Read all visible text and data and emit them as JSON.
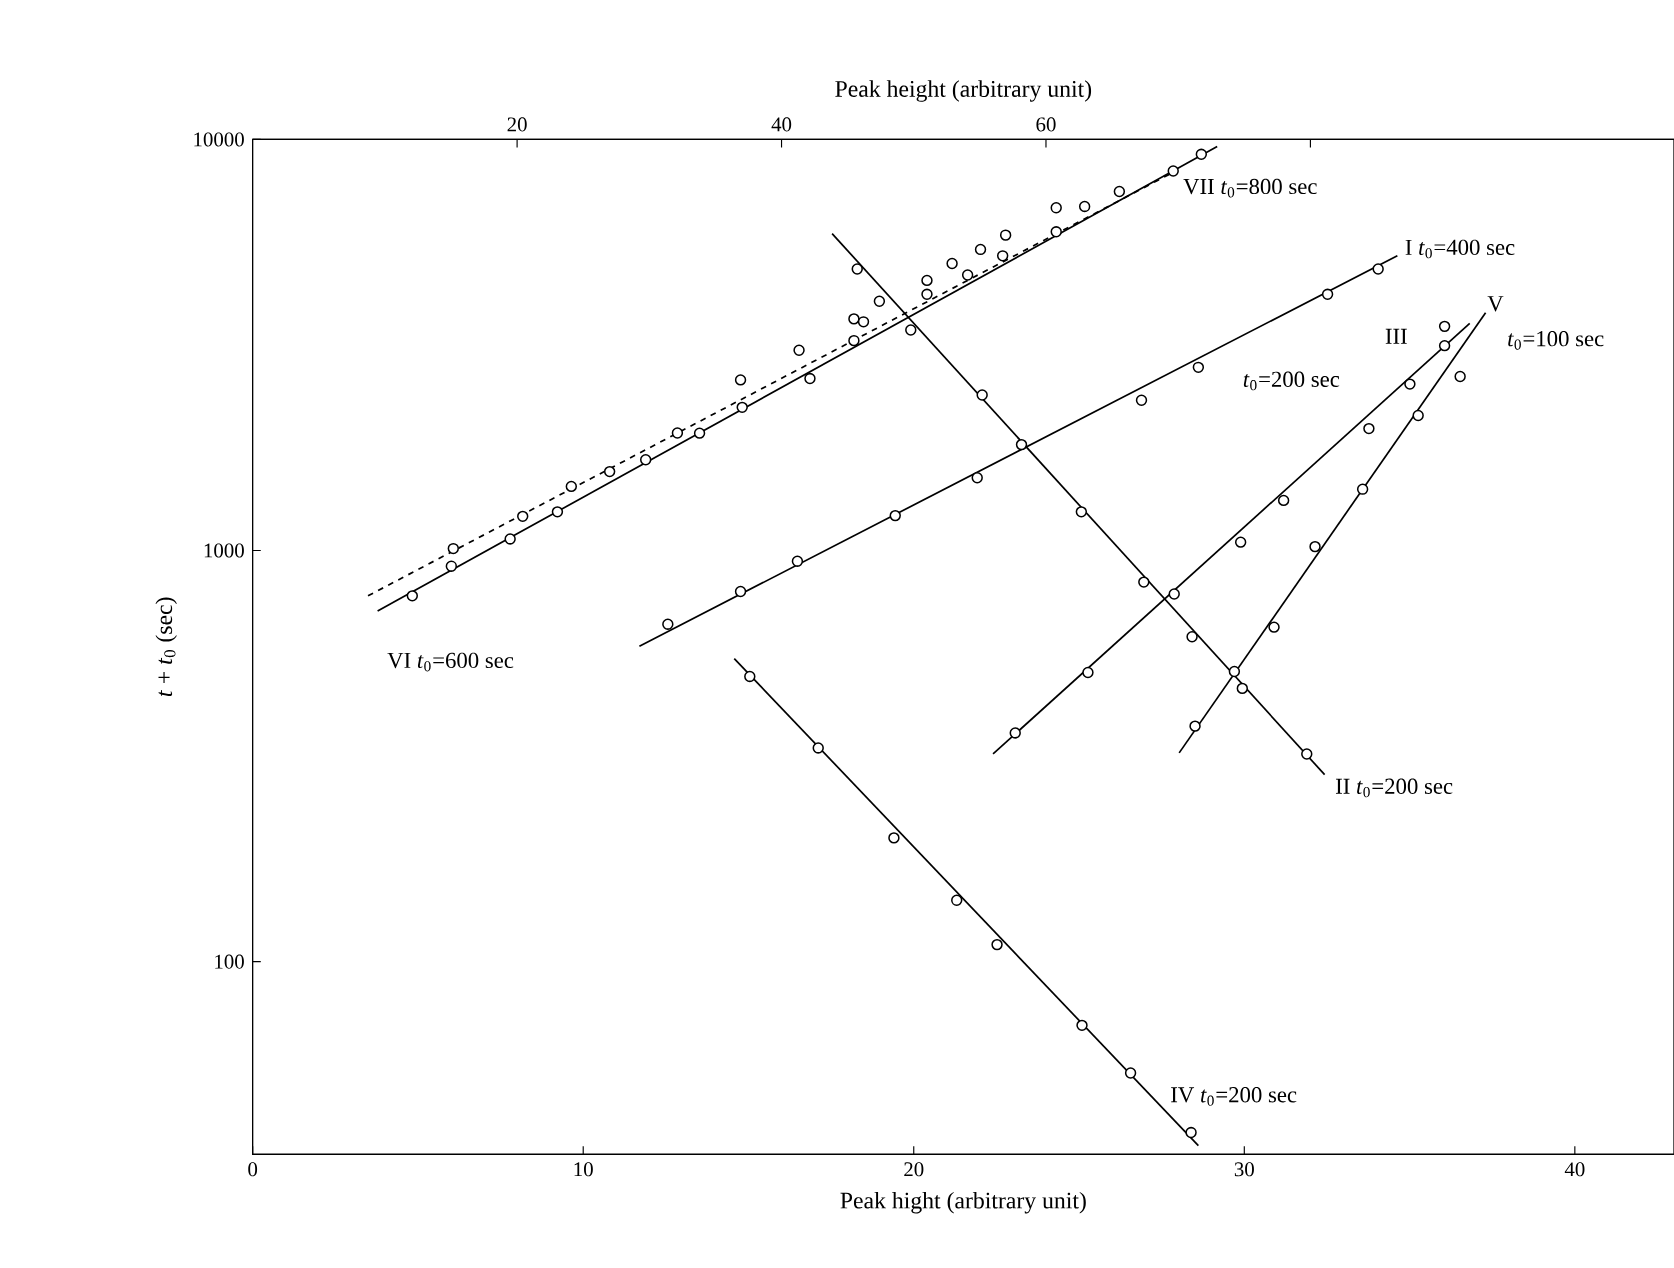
{
  "chart_data": {
    "type": "scatter",
    "xlabel": "Peak hight (arbitrary unit)",
    "x2label": "Peak height (arbitrary unit)",
    "ylabel": "*t* + *t*$_{0}$ (sec)",
    "xlim": [
      0,
      43
    ],
    "xticks": [
      0,
      10,
      20,
      30,
      40
    ],
    "x2lim": [
      0,
      107.5
    ],
    "x2ticks": [
      20,
      40,
      60,
      {
        "value": 80,
        "label": null
      }
    ],
    "ylim": [
      34,
      10000
    ],
    "yticks": [
      100,
      1000,
      10000
    ],
    "log": "y",
    "series": [
      {
        "marker": "circle",
        "color": "#000000",
        "x": [
          4.83,
          6.01,
          7.79,
          9.22,
          10.8,
          12.85,
          14.76,
          16.53,
          18.19,
          18.96,
          20.4,
          21.16,
          22.02,
          22.78,
          24.31,
          25.17,
          26.22,
          28.7
        ],
        "values": [
          776,
          916,
          1067,
          1242,
          1556,
          1932,
          2600,
          3070,
          3660,
          4040,
          4540,
          4990,
          5400,
          5850,
          6820,
          6870,
          7470,
          9200
        ]
      },
      {
        "type": "line",
        "marker": "none",
        "line_style": "solid",
        "color": "#000000",
        "x": [
          3.78,
          29.18
        ],
        "values": [
          713,
          9610
        ]
      },
      {
        "marker": "circle",
        "color": "#000000",
        "x": [
          6.07,
          8.17,
          9.64,
          11.89,
          13.52,
          14.81,
          16.86,
          18.19,
          18.48,
          20.4,
          21.63,
          22.69,
          24.31,
          27.85
        ],
        "values": [
          1011,
          1211,
          1432,
          1663,
          1930,
          2230,
          2620,
          3240,
          3600,
          4200,
          4680,
          5210,
          5960,
          8380
        ]
      },
      {
        "type": "line",
        "marker": "none",
        "line_style": "dashed",
        "color": "#000000",
        "x": [
          3.49,
          27.85
        ],
        "values": [
          776,
          8320
        ]
      },
      {
        "marker": "circle",
        "color": "#000000",
        "x": [
          12.56,
          14.76,
          16.48,
          19.44,
          21.92,
          26.89,
          28.61,
          32.52,
          34.05
        ],
        "values": [
          662,
          795,
          942,
          1216,
          1503,
          2320,
          2790,
          4200,
          4840
        ]
      },
      {
        "type": "line",
        "marker": "none",
        "line_style": "solid",
        "color": "#000000",
        "x": [
          11.7,
          34.63
        ],
        "values": [
          585,
          5210
        ]
      },
      {
        "marker": "circle",
        "color": "#000000",
        "x": [
          18.29,
          19.91,
          22.07,
          23.26,
          25.07,
          26.96,
          28.42,
          29.94,
          31.89
        ],
        "values": [
          4840,
          3440,
          2390,
          1810,
          1242,
          838,
          617,
          462,
          320
        ]
      },
      {
        "type": "line",
        "marker": "none",
        "line_style": "solid",
        "color": "#000000",
        "x": [
          17.53,
          32.43
        ],
        "values": [
          5900,
          285
        ]
      },
      {
        "marker": "circle",
        "color": "#000000",
        "x": [
          23.07,
          25.27,
          27.88,
          29.89,
          31.19,
          33.77,
          35.01,
          36.06
        ],
        "values": [
          360,
          505,
          784,
          1048,
          1324,
          1980,
          2540,
          3510
        ]
      },
      {
        "type": "line",
        "marker": "none",
        "line_style": "solid",
        "color": "#000000",
        "x": [
          22.4,
          36.82
        ],
        "values": [
          320,
          3570
        ]
      },
      {
        "marker": "circle",
        "color": "#000000",
        "x": [
          28.51,
          29.7,
          30.9,
          32.14,
          33.58,
          35.26,
          36.06,
          36.53
        ],
        "values": [
          374,
          508,
          651,
          1022,
          1410,
          2130,
          3150,
          2650
        ]
      },
      {
        "type": "line",
        "marker": "none",
        "line_style": "solid",
        "color": "#000000",
        "x": [
          28.03,
          37.3
        ],
        "values": [
          322,
          3790
        ]
      },
      {
        "marker": "circle",
        "color": "#000000",
        "x": [
          15.04,
          17.11,
          19.4,
          21.3,
          22.52,
          25.09,
          26.56,
          28.39
        ],
        "values": [
          494,
          331,
          200,
          141,
          110,
          70,
          53.6,
          38.4
        ]
      },
      {
        "type": "line",
        "marker": "none",
        "line_style": "solid",
        "color": "#000000",
        "x": [
          14.57,
          28.61
        ],
        "values": [
          546,
          35.7
        ]
      }
    ],
    "annotations": [
      "VII *t*$_{0}$=800 sec",
      "I   *t*$_{0}$=400 sec",
      "III",
      "V",
      "*t*$_{0}$=100 sec",
      "*t*$_{0}$=200 sec",
      "II   *t*$_{0}$=200 sec",
      "IV   *t*$_{0}$=200 sec",
      "VI *t*$_{0}$=600 sec"
    ]
  }
}
